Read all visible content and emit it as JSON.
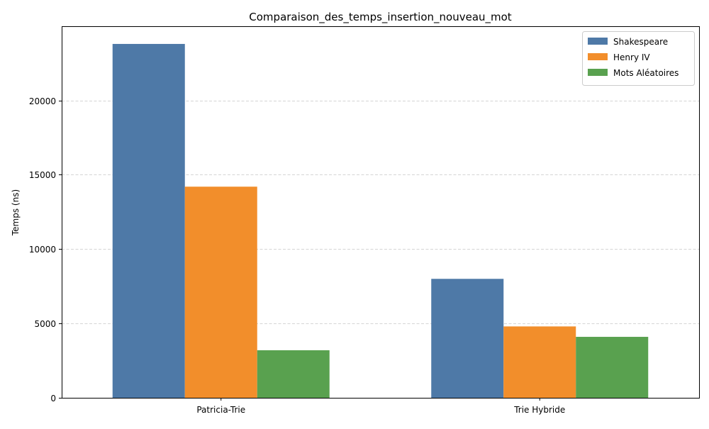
{
  "chart_data": {
    "type": "bar",
    "title": "Comparaison_des_temps_insertion_nouveau_mot",
    "xlabel": "",
    "ylabel": "Temps (ns)",
    "categories": [
      "Patricia-Trie",
      "Trie Hybride"
    ],
    "series": [
      {
        "name": "Shakespeare",
        "values": [
          23800,
          8000
        ],
        "color": "#4e79a7"
      },
      {
        "name": "Henry IV",
        "values": [
          14200,
          4800
        ],
        "color": "#f28e2b"
      },
      {
        "name": "Mots Aléatoires",
        "values": [
          3200,
          4100
        ],
        "color": "#59a14f"
      }
    ],
    "ylim": [
      0,
      24990
    ],
    "yticks": [
      0,
      5000,
      10000,
      15000,
      20000
    ],
    "grid": "y-dashed",
    "legend_position": "top-right"
  }
}
